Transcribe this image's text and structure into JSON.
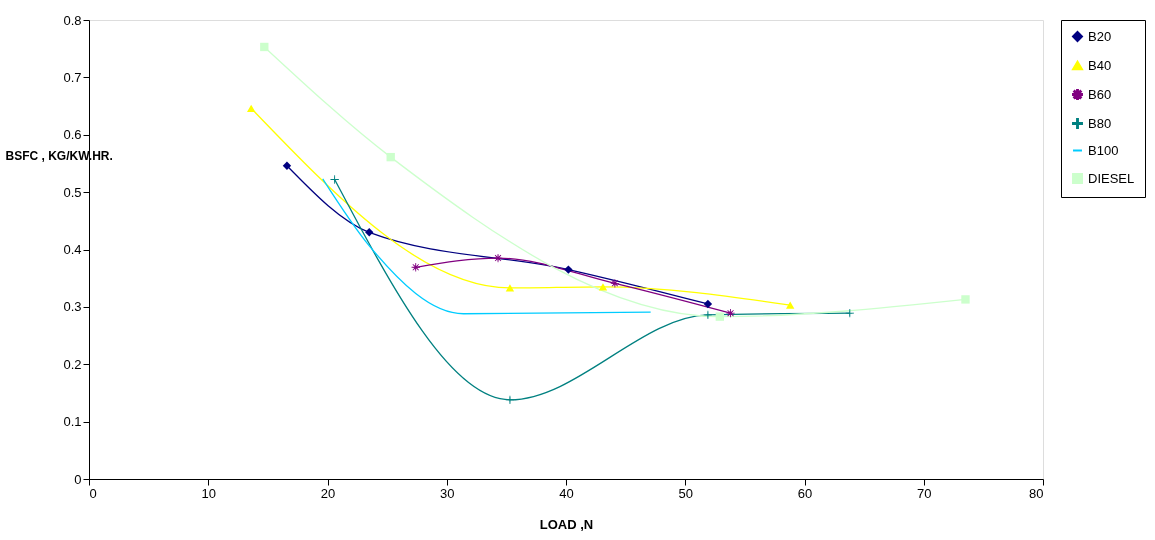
{
  "chart_data": {
    "type": "line",
    "xlabel": "LOAD ,N",
    "ylabel": "BSFC , KG/KW.HR.",
    "xlim": [
      0,
      80
    ],
    "xticks": [
      0,
      10,
      20,
      30,
      40,
      50,
      60,
      70,
      80
    ],
    "ylim": [
      0,
      0.8
    ],
    "yticks": [
      0,
      0.1,
      0.2,
      0.3,
      0.4,
      0.5,
      0.6,
      0.7,
      0.8
    ],
    "grid": false,
    "legend": "right",
    "line_style": "solid",
    "series": [
      {
        "name": "B20",
        "color": "#000080",
        "marker": "diamond",
        "x": [
          16.6,
          23.5,
          40.2,
          51.9
        ],
        "values": [
          0.546,
          0.43,
          0.365,
          0.305
        ]
      },
      {
        "name": "B40",
        "color": "#ffff00",
        "marker": "triangle",
        "x": [
          13.6,
          35.3,
          43.1,
          58.8
        ],
        "values": [
          0.646,
          0.333,
          0.335,
          0.303
        ]
      },
      {
        "name": "B60",
        "color": "#800080",
        "marker": "star",
        "x": [
          27.4,
          34.3,
          44.1,
          53.8
        ],
        "values": [
          0.369,
          0.385,
          0.341,
          0.289
        ]
      },
      {
        "name": "B80",
        "color": "#008080",
        "marker": "cross",
        "x": [
          20.6,
          35.3,
          51.9,
          63.8
        ],
        "values": [
          0.522,
          0.138,
          0.286,
          0.289
        ]
      },
      {
        "name": "B100",
        "color": "#00ccff",
        "marker": "none",
        "x": [
          19.6,
          23.4,
          31.4,
          47.1
        ],
        "values": [
          0.523,
          0.409,
          0.288,
          0.291
        ]
      },
      {
        "name": "DIESEL",
        "color": "#ccffcc",
        "marker": "square",
        "x": [
          14.7,
          25.3,
          52.9,
          73.5
        ],
        "values": [
          0.753,
          0.561,
          0.283,
          0.313
        ]
      }
    ]
  }
}
